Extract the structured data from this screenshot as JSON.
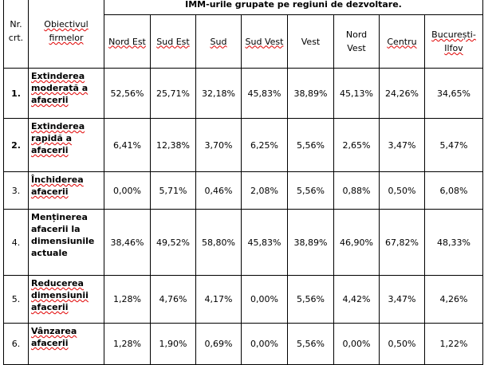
{
  "header": {
    "title": "IMM-urile grupate pe regiuni de dezvoltare.",
    "col_nr": "Nr. crt.",
    "col_obj": "Obiectivul firmelor",
    "regions": [
      "Nord Est",
      "Sud Est",
      "Sud",
      "Sud Vest",
      "Vest",
      "Nord Vest",
      "Centru",
      "București-Ilfov"
    ]
  },
  "rows": [
    {
      "nr": "1.",
      "objective": "Extinderea moderată a afacerii",
      "values": [
        "52,56%",
        "25,71%",
        "32,18%",
        "45,83%",
        "38,89%",
        "45,13%",
        "24,26%",
        "34,65%"
      ]
    },
    {
      "nr": "2.",
      "objective": "Extinderea rapidă a afacerii",
      "values": [
        "6,41%",
        "12,38%",
        "3,70%",
        "6,25%",
        "5,56%",
        "2,65%",
        "3,47%",
        "5,47%"
      ]
    },
    {
      "nr": "3.",
      "objective": "Închiderea afacerii",
      "values": [
        "0,00%",
        "5,71%",
        "0,46%",
        "2,08%",
        "5,56%",
        "0,88%",
        "0,50%",
        "6,08%"
      ]
    },
    {
      "nr": "4.",
      "objective": "Menținerea afacerii la dimensiunile actuale",
      "values": [
        "38,46%",
        "49,52%",
        "58,80%",
        "45,83%",
        "38,89%",
        "46,90%",
        "67,82%",
        "48,33%"
      ]
    },
    {
      "nr": "5.",
      "objective": "Reducerea dimensiunii afacerii",
      "values": [
        "1,28%",
        "4,76%",
        "4,17%",
        "0,00%",
        "5,56%",
        "4,42%",
        "3,47%",
        "4,26%"
      ]
    },
    {
      "nr": "6.",
      "objective": "Vânzarea afacerii",
      "values": [
        "1,28%",
        "1,90%",
        "0,69%",
        "0,00%",
        "5,56%",
        "0,00%",
        "0,50%",
        "1,22%"
      ]
    }
  ]
}
